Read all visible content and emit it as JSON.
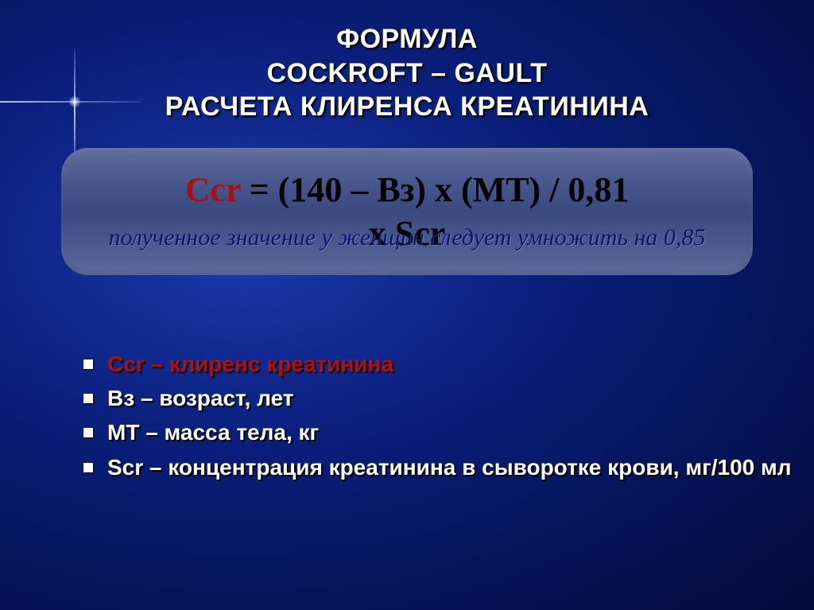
{
  "title": {
    "line1": "ФОРМУЛА",
    "line2": "COCKROFT – GAULT",
    "line3": "РАСЧЕТА КЛИРЕНСА КРЕАТИНИНА"
  },
  "formula": {
    "ccr": "Ccr",
    "line1_rest": " = (140 – Вз) х (МТ) / 0,81",
    "line2": "х Scr",
    "note": "полученное значение у женщин следует умножить на 0,85"
  },
  "legend": [
    {
      "label_highlight": "Ccr – клиренс креатинина",
      "highlight": true
    },
    {
      "label": "Вз – возраст, лет"
    },
    {
      "label": "МТ – масса тела, кг"
    },
    {
      "label": "Scr – концентрация креатинина в сыворотке крови, мг/100 мл"
    }
  ]
}
